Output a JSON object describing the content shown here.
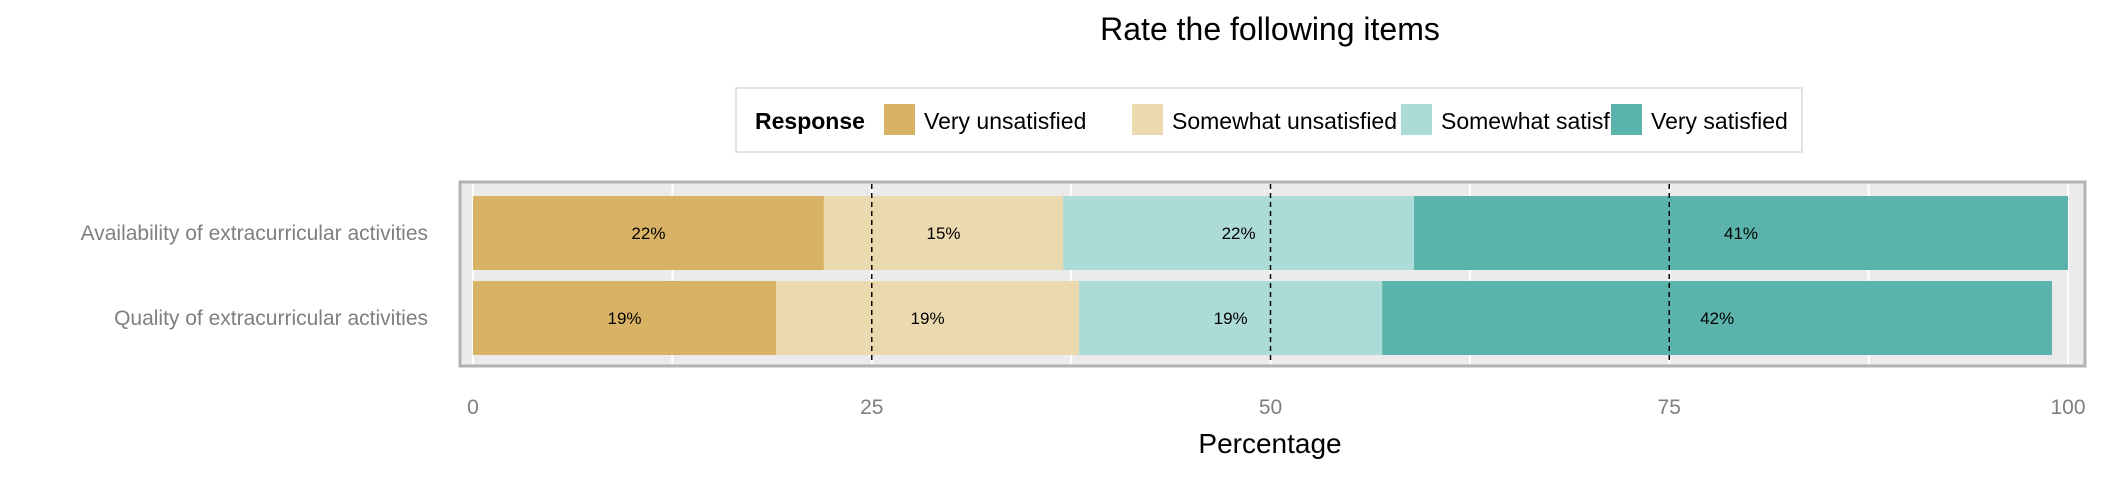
{
  "chart_data": {
    "type": "bar",
    "orientation": "horizontal",
    "stacked": true,
    "title": "Rate the following items",
    "xlabel": "Percentage",
    "ylabel": "",
    "xlim": [
      0,
      100
    ],
    "x_ticks": [
      0,
      25,
      50,
      75,
      100
    ],
    "grid": true,
    "legend": {
      "title": "Response",
      "placement": "top"
    },
    "categories": [
      "Availability of extracurricular activities",
      "Quality of extracurricular activities"
    ],
    "series": [
      {
        "name": "Very unsatisfied",
        "color": "#d9b365",
        "values": [
          22,
          19
        ],
        "labels": [
          "22%",
          "19%"
        ]
      },
      {
        "name": "Somewhat unsatisfied",
        "color": "#ebd9b0",
        "values": [
          15,
          19
        ],
        "labels": [
          "15%",
          "19%"
        ]
      },
      {
        "name": "Somewhat satisfied",
        "color": "#addbd7",
        "values": [
          22,
          19
        ],
        "labels": [
          "22%",
          "19%"
        ]
      },
      {
        "name": "Very satisfied",
        "color": "#5ab4ab",
        "values": [
          41,
          42
        ],
        "labels": [
          "41%",
          "42%"
        ]
      }
    ]
  }
}
